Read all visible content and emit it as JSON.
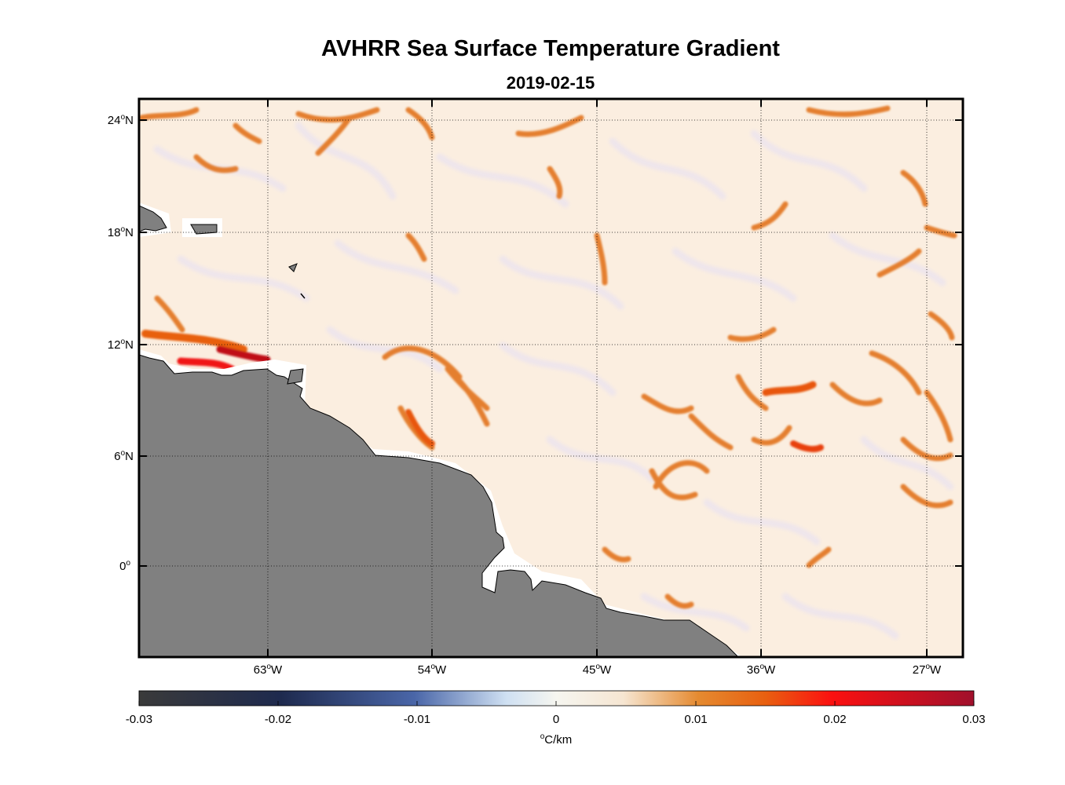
{
  "title": "AVHRR Sea Surface Temperature Gradient",
  "subtitle": "2019-02-15",
  "y_axis": {
    "ticks": [
      {
        "value": 24,
        "num": "24",
        "unit": "N"
      },
      {
        "value": 18,
        "num": "18",
        "unit": "N"
      },
      {
        "value": 12,
        "num": "12",
        "unit": "N"
      },
      {
        "value": 6,
        "num": "6",
        "unit": "N"
      },
      {
        "value": 0,
        "num": "0",
        "unit": ""
      }
    ]
  },
  "x_axis": {
    "ticks": [
      {
        "value": -63,
        "num": "63",
        "unit": "W"
      },
      {
        "value": -54,
        "num": "54",
        "unit": "W"
      },
      {
        "value": -45,
        "num": "45",
        "unit": "W"
      },
      {
        "value": -36,
        "num": "36",
        "unit": "W"
      },
      {
        "value": -27,
        "num": "27",
        "unit": "W"
      }
    ]
  },
  "map_extent": {
    "lon": [
      -70.1,
      -25.2
    ],
    "lat": [
      -4.8,
      25.1
    ]
  },
  "colorbar": {
    "ticks": [
      "-0.03",
      "-0.02",
      "-0.01",
      "0",
      "0.01",
      "0.02",
      "0.03"
    ],
    "unit_symbol": "o",
    "unit_text": "C/km",
    "range": [
      -0.03,
      0.03
    ]
  },
  "colors": {
    "land": "#808080",
    "ocean_base": "#fbeee0",
    "frame": "#000000"
  }
}
